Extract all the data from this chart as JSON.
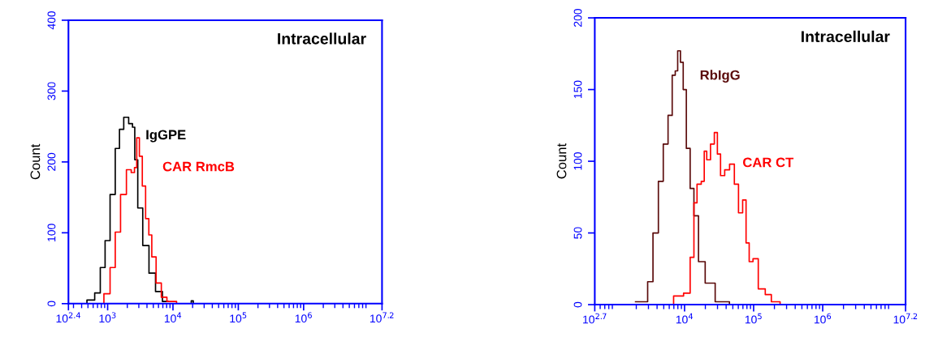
{
  "chart_data": [
    {
      "type": "step",
      "ylabel": "Count",
      "log": "x",
      "annotations": [
        "Intracellular"
      ],
      "xlim": [
        251.19,
        15848932
      ],
      "xticks": [
        {
          "value": 251.19,
          "label": "10$^{2.4}$"
        },
        {
          "value": 1000,
          "label": "10$^{3}$"
        },
        {
          "value": 10000,
          "label": "10$^{4}$"
        },
        {
          "value": 100000,
          "label": "10$^{5}$"
        },
        {
          "value": 1000000,
          "label": "10$^{6}$"
        },
        {
          "value": 15848932,
          "label": "10$^{7.2}$"
        }
      ],
      "ylim": [
        0,
        400
      ],
      "yticks": [
        0,
        100,
        200,
        300,
        400
      ],
      "series": [
        {
          "name": "IgGPE",
          "color": "#000000",
          "x": [
            389,
            575,
            692,
            851,
            977,
            1202,
            1413,
            1622,
            1905,
            2291,
            2512,
            2692,
            3090,
            3802,
            4786,
            6026,
            7762,
            9120,
            18600,
            19500,
            21400
          ],
          "values": [
            0,
            5,
            15,
            51,
            89,
            154,
            219,
            246,
            263,
            254,
            249,
            203,
            135,
            82,
            43,
            17,
            3,
            null,
            0,
            4,
            0
          ]
        },
        {
          "name": "CAR RmcB",
          "color": "#ff0000",
          "x": [
            776,
            977,
            1202,
            1413,
            1738,
            2138,
            2455,
            2692,
            2884,
            3236,
            3548,
            4074,
            4467,
            5012,
            6026,
            7244,
            8913,
            13800
          ],
          "values": [
            0,
            14,
            51,
            101,
            154,
            189,
            185,
            192,
            234,
            208,
            166,
            120,
            97,
            66,
            29,
            9,
            3,
            0
          ]
        }
      ]
    },
    {
      "type": "step",
      "ylabel": "Count",
      "log": "x",
      "annotations": [
        "Intracellular"
      ],
      "xlim": [
        501.19,
        15848932
      ],
      "xticks": [
        {
          "value": 501.19,
          "label": "10$^{2.7}$"
        },
        {
          "value": 10000,
          "label": "10$^{4}$"
        },
        {
          "value": 100000,
          "label": "10$^{5}$"
        },
        {
          "value": 1000000,
          "label": "10$^{6}$"
        },
        {
          "value": 15848932,
          "label": "10$^{7.2}$"
        }
      ],
      "ylim": [
        0,
        200
      ],
      "yticks": [
        0,
        50,
        100,
        150,
        200
      ],
      "series": [
        {
          "name": "RbIgG",
          "color": "#5a0a0a",
          "x": [
            1950,
            2754,
            3090,
            3890,
            4467,
            5370,
            6166,
            7079,
            7586,
            8318,
            9120,
            10000,
            11220,
            12880,
            14450,
            17380,
            22390,
            33110,
            56230
          ],
          "values": [
            2,
            2,
            16,
            50,
            86,
            112,
            132,
            160,
            163,
            177,
            169,
            150,
            109,
            81,
            62,
            30,
            15,
            2,
            0
          ]
        },
        {
          "name": "CAR CT",
          "color": "#ff0000",
          "x": [
            5754,
            8128,
            11220,
            12880,
            14450,
            15850,
            19050,
            19500,
            22390,
            25120,
            28840,
            30900,
            35480,
            40740,
            48980,
            56230,
            64570,
            74130,
            81280,
            91200,
            104700,
            128800,
            166000,
            195000,
            288400,
            1585000
          ],
          "values": [
            0,
            6,
            8,
            33,
            71,
            84,
            86,
            107,
            101,
            112,
            120,
            105,
            90,
            94,
            98,
            84,
            64,
            73,
            43,
            30,
            32,
            11,
            7,
            2,
            0,
            0
          ]
        }
      ]
    }
  ]
}
